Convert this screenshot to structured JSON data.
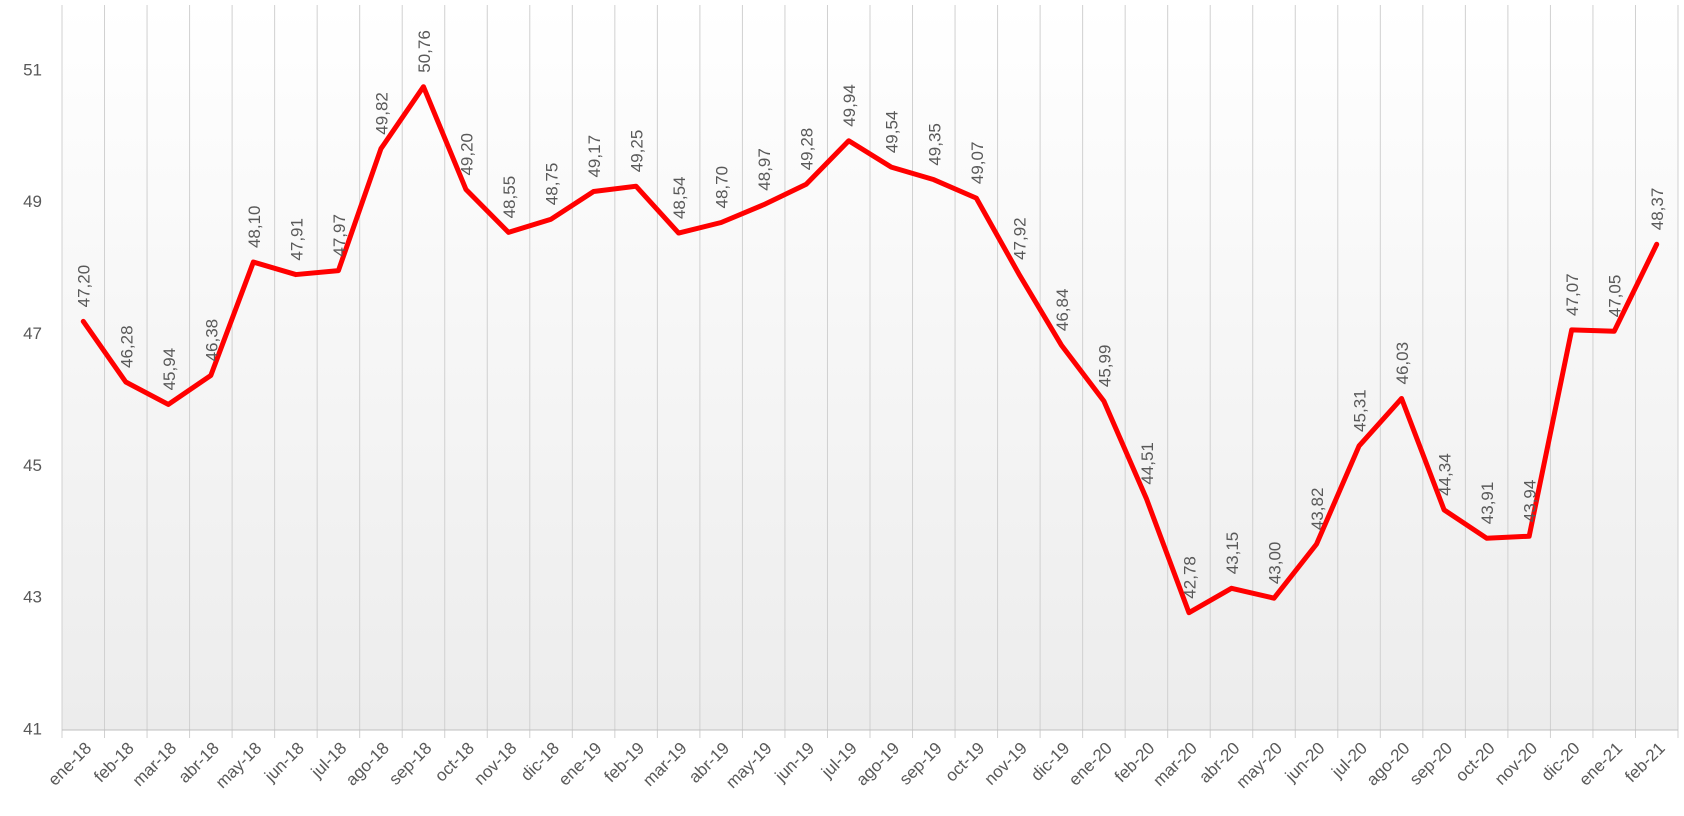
{
  "chart_data": {
    "type": "line",
    "categories": [
      "ene-18",
      "feb-18",
      "mar-18",
      "abr-18",
      "may-18",
      "jun-18",
      "jul-18",
      "ago-18",
      "sep-18",
      "oct-18",
      "nov-18",
      "dic-18",
      "ene-19",
      "feb-19",
      "mar-19",
      "abr-19",
      "may-19",
      "jun-19",
      "jul-19",
      "ago-19",
      "sep-19",
      "oct-19",
      "nov-19",
      "dic-19",
      "ene-20",
      "feb-20",
      "mar-20",
      "abr-20",
      "may-20",
      "jun-20",
      "jul-20",
      "ago-20",
      "sep-20",
      "oct-20",
      "nov-20",
      "dic-20",
      "ene-21",
      "feb-21"
    ],
    "values": [
      47.2,
      46.28,
      45.94,
      46.38,
      48.1,
      47.91,
      47.97,
      49.82,
      50.76,
      49.2,
      48.55,
      48.75,
      49.17,
      49.25,
      48.54,
      48.7,
      48.97,
      49.28,
      49.94,
      49.54,
      49.35,
      49.07,
      47.92,
      46.84,
      45.99,
      44.51,
      42.78,
      43.15,
      43.0,
      43.82,
      45.31,
      46.03,
      44.34,
      43.91,
      43.94,
      47.07,
      47.05,
      48.37
    ],
    "value_labels": [
      "47,20",
      "46,28",
      "45,94",
      "46,38",
      "48,10",
      "47,91",
      "47,97",
      "49,82",
      "50,76",
      "49,20",
      "48,55",
      "48,75",
      "49,17",
      "49,25",
      "48,54",
      "48,70",
      "48,97",
      "49,28",
      "49,94",
      "49,54",
      "49,35",
      "49,07",
      "47,92",
      "46,84",
      "45,99",
      "44,51",
      "42,78",
      "43,15",
      "43,00",
      "43,82",
      "45,31",
      "46,03",
      "44,34",
      "43,91",
      "43,94",
      "47,07",
      "47,05",
      "48,37"
    ],
    "color": "#ff0000",
    "ylim": [
      41,
      52
    ],
    "yticks": [
      41,
      43,
      45,
      47,
      49,
      51
    ],
    "grid": true
  }
}
